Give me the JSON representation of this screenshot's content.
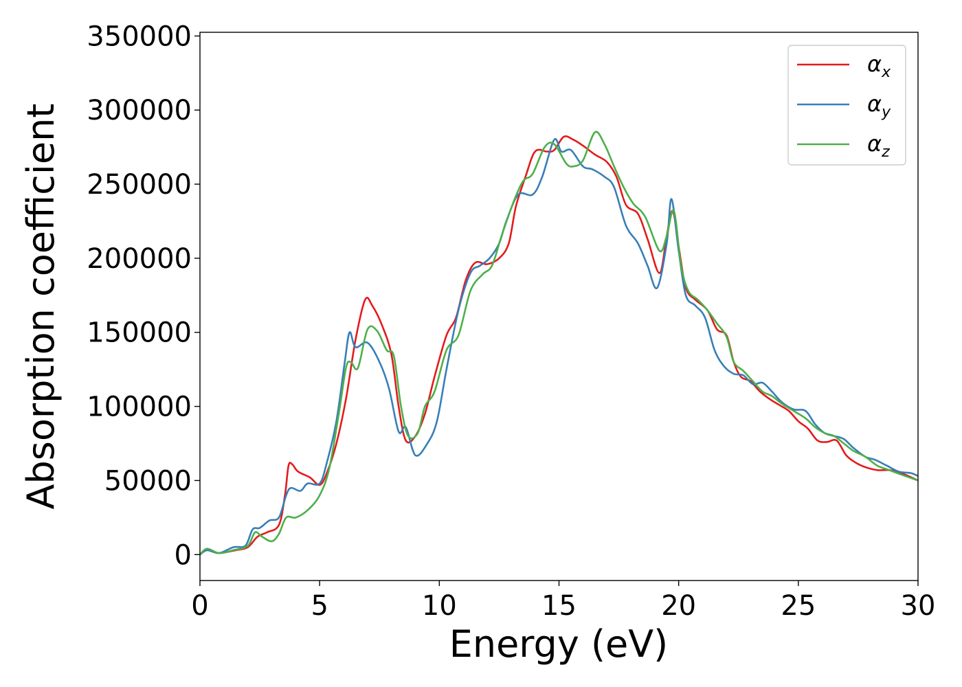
{
  "chart_data": {
    "type": "line",
    "xlabel": "Energy (eV)",
    "ylabel": "Absorption coefficient",
    "xlim": [
      0,
      30
    ],
    "ylim": [
      -17500,
      352500
    ],
    "x_ticks": [
      0,
      5,
      10,
      15,
      20,
      25,
      30
    ],
    "y_ticks": [
      0,
      50000,
      100000,
      150000,
      200000,
      250000,
      300000,
      350000
    ],
    "x_tick_labels": [
      "0",
      "5",
      "10",
      "15",
      "20",
      "25",
      "30"
    ],
    "y_tick_labels": [
      "0",
      "50000",
      "100000",
      "150000",
      "200000",
      "250000",
      "300000",
      "350000"
    ],
    "grid": false,
    "legend_position": "top-right",
    "series": [
      {
        "name": "α_x",
        "name_main": "α",
        "name_sub": "x",
        "color": "#e41a1c",
        "points": [
          [
            0,
            0
          ],
          [
            0.3,
            3000
          ],
          [
            0.8,
            1000
          ],
          [
            1.5,
            3000
          ],
          [
            2,
            5000
          ],
          [
            2.4,
            12000
          ],
          [
            2.8,
            15000
          ],
          [
            3.3,
            20000
          ],
          [
            3.55,
            40000
          ],
          [
            3.7,
            60000
          ],
          [
            3.85,
            61000
          ],
          [
            4.1,
            56000
          ],
          [
            4.6,
            52000
          ],
          [
            5.0,
            47000
          ],
          [
            5.3,
            55000
          ],
          [
            5.7,
            75000
          ],
          [
            6.1,
            105000
          ],
          [
            6.5,
            145000
          ],
          [
            6.9,
            172000
          ],
          [
            7.2,
            168000
          ],
          [
            7.6,
            155000
          ],
          [
            8.0,
            135000
          ],
          [
            8.3,
            100000
          ],
          [
            8.6,
            77000
          ],
          [
            9.0,
            80000
          ],
          [
            9.4,
            95000
          ],
          [
            9.8,
            120000
          ],
          [
            10.3,
            148000
          ],
          [
            10.7,
            160000
          ],
          [
            11.1,
            185000
          ],
          [
            11.5,
            197000
          ],
          [
            12.0,
            196000
          ],
          [
            12.5,
            200000
          ],
          [
            12.9,
            210000
          ],
          [
            13.2,
            235000
          ],
          [
            13.6,
            255000
          ],
          [
            14.0,
            272000
          ],
          [
            14.5,
            272000
          ],
          [
            14.8,
            273000
          ],
          [
            15.2,
            282000
          ],
          [
            15.6,
            280000
          ],
          [
            16.0,
            276000
          ],
          [
            16.5,
            270000
          ],
          [
            17.0,
            265000
          ],
          [
            17.4,
            255000
          ],
          [
            17.8,
            236000
          ],
          [
            18.3,
            230000
          ],
          [
            18.7,
            213000
          ],
          [
            19.2,
            190000
          ],
          [
            19.5,
            215000
          ],
          [
            19.75,
            232000
          ],
          [
            20.0,
            208000
          ],
          [
            20.3,
            180000
          ],
          [
            20.7,
            172000
          ],
          [
            21.2,
            165000
          ],
          [
            21.6,
            152000
          ],
          [
            22.0,
            148000
          ],
          [
            22.3,
            130000
          ],
          [
            22.6,
            120000
          ],
          [
            23.0,
            117000
          ],
          [
            23.4,
            110000
          ],
          [
            23.8,
            105000
          ],
          [
            24.2,
            101000
          ],
          [
            24.6,
            97000
          ],
          [
            25.0,
            90000
          ],
          [
            25.4,
            85000
          ],
          [
            25.8,
            77000
          ],
          [
            26.2,
            76000
          ],
          [
            26.6,
            77000
          ],
          [
            27.0,
            67000
          ],
          [
            27.4,
            62000
          ],
          [
            27.8,
            59000
          ],
          [
            28.3,
            57000
          ],
          [
            28.8,
            57000
          ],
          [
            29.3,
            55000
          ],
          [
            30,
            50000
          ]
        ]
      },
      {
        "name": "α_y",
        "name_main": "α",
        "name_sub": "y",
        "color": "#377eb8",
        "points": [
          [
            0,
            0
          ],
          [
            0.3,
            3000
          ],
          [
            0.8,
            1000
          ],
          [
            1.4,
            5000
          ],
          [
            1.9,
            6000
          ],
          [
            2.2,
            17000
          ],
          [
            2.5,
            18000
          ],
          [
            2.9,
            23000
          ],
          [
            3.3,
            25000
          ],
          [
            3.6,
            40000
          ],
          [
            3.8,
            45000
          ],
          [
            4.2,
            43000
          ],
          [
            4.5,
            48000
          ],
          [
            5.0,
            48000
          ],
          [
            5.3,
            62000
          ],
          [
            5.7,
            90000
          ],
          [
            6.05,
            130000
          ],
          [
            6.25,
            150000
          ],
          [
            6.5,
            140000
          ],
          [
            7.0,
            143000
          ],
          [
            7.5,
            130000
          ],
          [
            7.9,
            112000
          ],
          [
            8.3,
            83000
          ],
          [
            8.6,
            86000
          ],
          [
            9.0,
            67000
          ],
          [
            9.5,
            75000
          ],
          [
            9.9,
            90000
          ],
          [
            10.3,
            125000
          ],
          [
            10.8,
            165000
          ],
          [
            11.3,
            190000
          ],
          [
            11.7,
            195000
          ],
          [
            12.1,
            200000
          ],
          [
            12.5,
            210000
          ],
          [
            12.8,
            225000
          ],
          [
            13.3,
            243000
          ],
          [
            13.9,
            243000
          ],
          [
            14.3,
            255000
          ],
          [
            14.8,
            280000
          ],
          [
            15.1,
            272000
          ],
          [
            15.5,
            273000
          ],
          [
            16.0,
            262000
          ],
          [
            16.4,
            260000
          ],
          [
            16.9,
            255000
          ],
          [
            17.3,
            248000
          ],
          [
            17.8,
            222000
          ],
          [
            18.3,
            210000
          ],
          [
            18.7,
            195000
          ],
          [
            19.1,
            180000
          ],
          [
            19.5,
            210000
          ],
          [
            19.7,
            240000
          ],
          [
            20.0,
            205000
          ],
          [
            20.3,
            175000
          ],
          [
            20.7,
            168000
          ],
          [
            21.1,
            160000
          ],
          [
            21.5,
            138000
          ],
          [
            21.9,
            127000
          ],
          [
            22.3,
            122000
          ],
          [
            22.7,
            121000
          ],
          [
            23.1,
            115000
          ],
          [
            23.5,
            116000
          ],
          [
            23.9,
            110000
          ],
          [
            24.3,
            103000
          ],
          [
            24.8,
            98000
          ],
          [
            25.3,
            97000
          ],
          [
            25.7,
            88000
          ],
          [
            26.1,
            82000
          ],
          [
            26.5,
            80000
          ],
          [
            26.9,
            78000
          ],
          [
            27.3,
            72000
          ],
          [
            27.8,
            66000
          ],
          [
            28.2,
            64000
          ],
          [
            28.7,
            60000
          ],
          [
            29.2,
            56000
          ],
          [
            29.7,
            55000
          ],
          [
            30,
            53000
          ]
        ]
      },
      {
        "name": "α_z",
        "name_main": "α",
        "name_sub": "z",
        "color": "#4daf4a",
        "points": [
          [
            0,
            0
          ],
          [
            0.3,
            4000
          ],
          [
            0.8,
            1000
          ],
          [
            1.4,
            3000
          ],
          [
            2.0,
            6000
          ],
          [
            2.3,
            15000
          ],
          [
            2.6,
            12000
          ],
          [
            3.0,
            9000
          ],
          [
            3.3,
            14000
          ],
          [
            3.6,
            25000
          ],
          [
            4.0,
            25000
          ],
          [
            4.5,
            30000
          ],
          [
            5.0,
            40000
          ],
          [
            5.4,
            58000
          ],
          [
            5.8,
            95000
          ],
          [
            6.1,
            126000
          ],
          [
            6.3,
            130000
          ],
          [
            6.6,
            126000
          ],
          [
            7.0,
            152000
          ],
          [
            7.4,
            151000
          ],
          [
            7.8,
            138000
          ],
          [
            8.1,
            134000
          ],
          [
            8.4,
            100000
          ],
          [
            8.7,
            80000
          ],
          [
            9.1,
            82000
          ],
          [
            9.4,
            100000
          ],
          [
            9.8,
            110000
          ],
          [
            10.3,
            138000
          ],
          [
            10.8,
            148000
          ],
          [
            11.3,
            178000
          ],
          [
            11.8,
            189000
          ],
          [
            12.2,
            195000
          ],
          [
            12.6,
            215000
          ],
          [
            13.1,
            238000
          ],
          [
            13.5,
            252000
          ],
          [
            13.9,
            257000
          ],
          [
            14.4,
            275000
          ],
          [
            14.8,
            277000
          ],
          [
            15.3,
            264000
          ],
          [
            15.6,
            262000
          ],
          [
            16.0,
            266000
          ],
          [
            16.5,
            285000
          ],
          [
            16.9,
            277000
          ],
          [
            17.3,
            262000
          ],
          [
            17.7,
            248000
          ],
          [
            18.1,
            237000
          ],
          [
            18.6,
            228000
          ],
          [
            19.2,
            205000
          ],
          [
            19.5,
            215000
          ],
          [
            19.8,
            232000
          ],
          [
            20.1,
            195000
          ],
          [
            20.4,
            178000
          ],
          [
            20.8,
            172000
          ],
          [
            21.2,
            165000
          ],
          [
            21.6,
            156000
          ],
          [
            22.0,
            147000
          ],
          [
            22.3,
            130000
          ],
          [
            22.7,
            124000
          ],
          [
            23.1,
            117000
          ],
          [
            23.5,
            110000
          ],
          [
            23.9,
            107000
          ],
          [
            24.3,
            102000
          ],
          [
            24.8,
            97000
          ],
          [
            25.3,
            92000
          ],
          [
            25.7,
            86000
          ],
          [
            26.1,
            82000
          ],
          [
            26.5,
            80000
          ],
          [
            26.9,
            75000
          ],
          [
            27.3,
            70000
          ],
          [
            27.8,
            66000
          ],
          [
            28.3,
            60000
          ],
          [
            28.8,
            57000
          ],
          [
            29.3,
            54000
          ],
          [
            30,
            50000
          ]
        ]
      }
    ]
  }
}
